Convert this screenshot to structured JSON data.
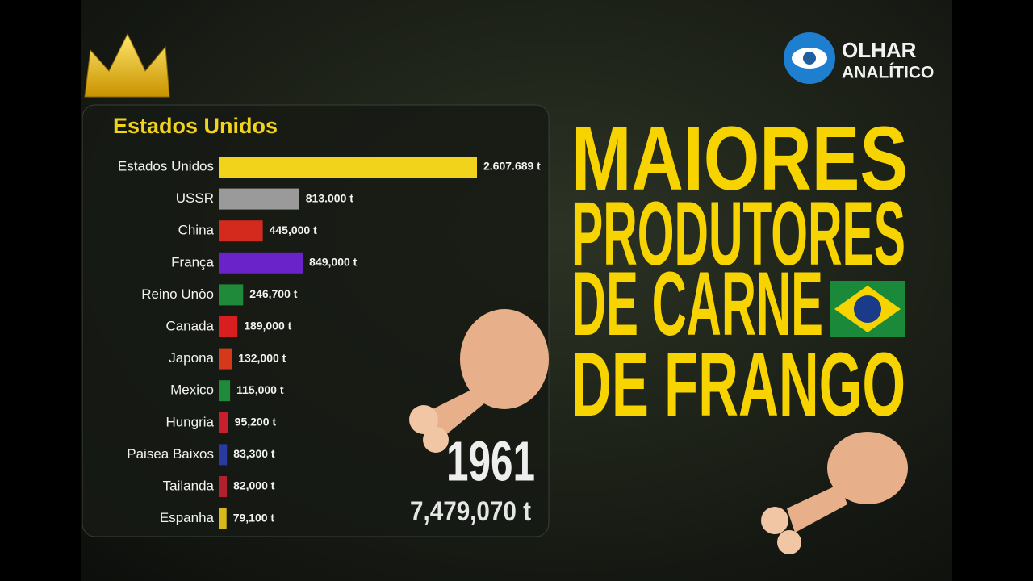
{
  "chart_data": {
    "type": "bar",
    "orientation": "horizontal",
    "leader": "Estados Unidos",
    "categories": [
      "Estados Unidos",
      "USSR",
      "China",
      "França",
      "Reino Unòo",
      "Canada",
      "Japona",
      "Mexico",
      "Hungria",
      "Paisea Baixos",
      "Tailanda",
      "Espanha"
    ],
    "values": [
      2607689,
      813000,
      445000,
      849000,
      246700,
      189000,
      132000,
      115000,
      95200,
      83300,
      82000,
      79100
    ],
    "value_labels": [
      "2.607.689 t",
      "813.000 t",
      "445,000 t",
      "849,000 t",
      "246,700 t",
      "189,000 t",
      "132,000 t",
      "115,000 t",
      "95,200 t",
      "83,300 t",
      "82,000 t",
      "79,100 t"
    ],
    "colors": [
      "#f2d31b",
      "#9a9a9a",
      "#d42a1e",
      "#6a22c9",
      "#1f8a3a",
      "#d81e1e",
      "#d43a1a",
      "#1f8a3a",
      "#c81e2e",
      "#2a3aa0",
      "#b0202e",
      "#d8b81a"
    ],
    "year": "1961",
    "total": "7,479,070 t"
  },
  "headline": [
    "MAIORES",
    "PRODUTORES",
    "DE CARNE",
    "DE FRANGO"
  ],
  "logo": {
    "line1": "OLHAR",
    "line2": "ANALÍTICO"
  }
}
